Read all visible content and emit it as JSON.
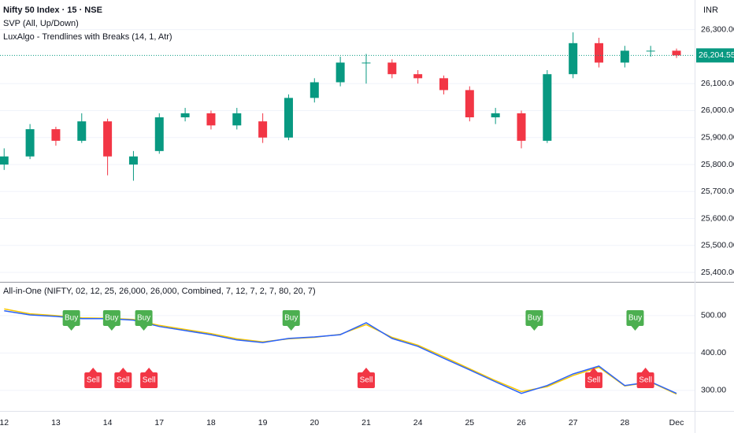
{
  "chart_data": [
    {
      "type": "candlestick",
      "title": "Nifty 50 Index · 15 · NSE",
      "indicators": [
        "SVP (All, Up/Down)",
        "LuxAlgo - Trendlines with Breaks (14, 1, Atr)"
      ],
      "currency": "INR",
      "x": [
        0,
        0.5,
        1,
        1.5,
        2,
        2.5,
        3,
        3.5,
        4,
        4.5,
        5,
        5.5,
        6,
        6.5,
        7,
        7.5,
        8,
        8.5,
        9,
        9.5,
        10,
        10.5,
        11,
        11.5,
        12,
        12.5,
        13
      ],
      "open": [
        25800,
        25830,
        25931,
        25888,
        25960,
        25800,
        25850,
        25975,
        25990,
        25945,
        25960,
        25900,
        26047,
        26105,
        26178,
        26178,
        26135,
        26120,
        26076,
        25975,
        25990,
        25888,
        26135,
        26250,
        26178,
        26222,
        26222
      ],
      "high": [
        25860,
        25950,
        25940,
        25990,
        25970,
        25850,
        25990,
        26010,
        26000,
        26010,
        25990,
        26060,
        26120,
        26200,
        26210,
        26190,
        26150,
        26130,
        26090,
        26010,
        26000,
        26150,
        26290,
        26270,
        26240,
        26240,
        26230
      ],
      "low": [
        25780,
        25820,
        25870,
        25880,
        25760,
        25740,
        25840,
        25960,
        25930,
        25930,
        25880,
        25890,
        26030,
        26090,
        26100,
        26120,
        26100,
        26060,
        25960,
        25950,
        25860,
        25880,
        26120,
        26160,
        26160,
        26200,
        26195
      ],
      "close": [
        25830,
        25931,
        25888,
        25960,
        25830,
        25830,
        25975,
        25990,
        25945,
        25990,
        25900,
        26047,
        26105,
        26178,
        26178,
        26135,
        26120,
        26076,
        25975,
        25990,
        25888,
        26135,
        26250,
        26178,
        26222,
        26222,
        26204.55
      ],
      "up_color": "#089981",
      "down_color": "#f23645",
      "last_price": {
        "value": 26204.55,
        "label": "26,204.55"
      },
      "xlim": [
        -0.08,
        13.35
      ],
      "ylim": [
        25365,
        26410
      ],
      "yticks": [
        {
          "value": 25400,
          "label": "25,400.00"
        },
        {
          "value": 25500,
          "label": "25,500.00"
        },
        {
          "value": 25600,
          "label": "25,600.00"
        },
        {
          "value": 25700,
          "label": "25,700.00"
        },
        {
          "value": 25800,
          "label": "25,800.00"
        },
        {
          "value": 25900,
          "label": "25,900.00"
        },
        {
          "value": 26000,
          "label": "26,000.00"
        },
        {
          "value": 26100,
          "label": "26,100.00"
        },
        {
          "value": 26300,
          "label": "26,300.00"
        }
      ]
    },
    {
      "type": "line",
      "title": "All-in-One (NIFTY, 02, 12, 25, 26,000, 26,000, Combined, 7, 12, 7, 2, 7, 80, 20, 7)",
      "x": [
        0,
        0.5,
        1,
        1.5,
        2,
        2.5,
        3,
        3.5,
        4,
        4.5,
        5,
        5.5,
        6,
        6.5,
        7,
        7.5,
        8,
        8.5,
        9,
        9.5,
        10,
        10.5,
        11,
        11.5,
        12,
        12.5,
        13
      ],
      "series": [
        {
          "color": "#f7c600",
          "values": [
            518,
            505,
            500,
            494,
            493,
            490,
            474,
            463,
            452,
            438,
            430,
            438,
            442,
            450,
            476,
            442,
            421,
            390,
            358,
            326,
            297,
            310,
            340,
            362,
            312,
            322,
            290
          ]
        },
        {
          "color": "#2962ff",
          "values": [
            513,
            502,
            498,
            492,
            492,
            488,
            471,
            460,
            449,
            435,
            428,
            439,
            443,
            449,
            481,
            439,
            418,
            386,
            355,
            323,
            292,
            313,
            344,
            365,
            313,
            323,
            292
          ]
        }
      ],
      "annotations": [
        {
          "label": "Buy",
          "x": 1.3
        },
        {
          "label": "Buy",
          "x": 2.08
        },
        {
          "label": "Buy",
          "x": 2.7
        },
        {
          "label": "Buy",
          "x": 5.55
        },
        {
          "label": "Buy",
          "x": 10.25
        },
        {
          "label": "Buy",
          "x": 12.2
        },
        {
          "label": "Sell",
          "x": 1.72
        },
        {
          "label": "Sell",
          "x": 2.3
        },
        {
          "label": "Sell",
          "x": 2.8
        },
        {
          "label": "Sell",
          "x": 7.0
        },
        {
          "label": "Sell",
          "x": 11.4
        },
        {
          "label": "Sell",
          "x": 12.4
        }
      ],
      "buy_color": "#4caf50",
      "sell_color": "#f23645",
      "xlim": [
        -0.08,
        13.35
      ],
      "ylim": [
        245,
        582
      ],
      "yticks": [
        {
          "value": 300,
          "label": "300.00"
        },
        {
          "value": 400,
          "label": "400.00"
        },
        {
          "value": 500,
          "label": "500.00"
        }
      ],
      "xticks": [
        {
          "value": 0,
          "label": "12"
        },
        {
          "value": 1,
          "label": "13"
        },
        {
          "value": 2,
          "label": "14"
        },
        {
          "value": 3,
          "label": "17"
        },
        {
          "value": 4,
          "label": "18"
        },
        {
          "value": 5,
          "label": "19"
        },
        {
          "value": 6,
          "label": "20"
        },
        {
          "value": 7,
          "label": "21"
        },
        {
          "value": 8,
          "label": "24"
        },
        {
          "value": 9,
          "label": "25"
        },
        {
          "value": 10,
          "label": "26"
        },
        {
          "value": 11,
          "label": "27"
        },
        {
          "value": 12,
          "label": "28"
        },
        {
          "value": 13,
          "label": "Dec"
        }
      ]
    }
  ]
}
